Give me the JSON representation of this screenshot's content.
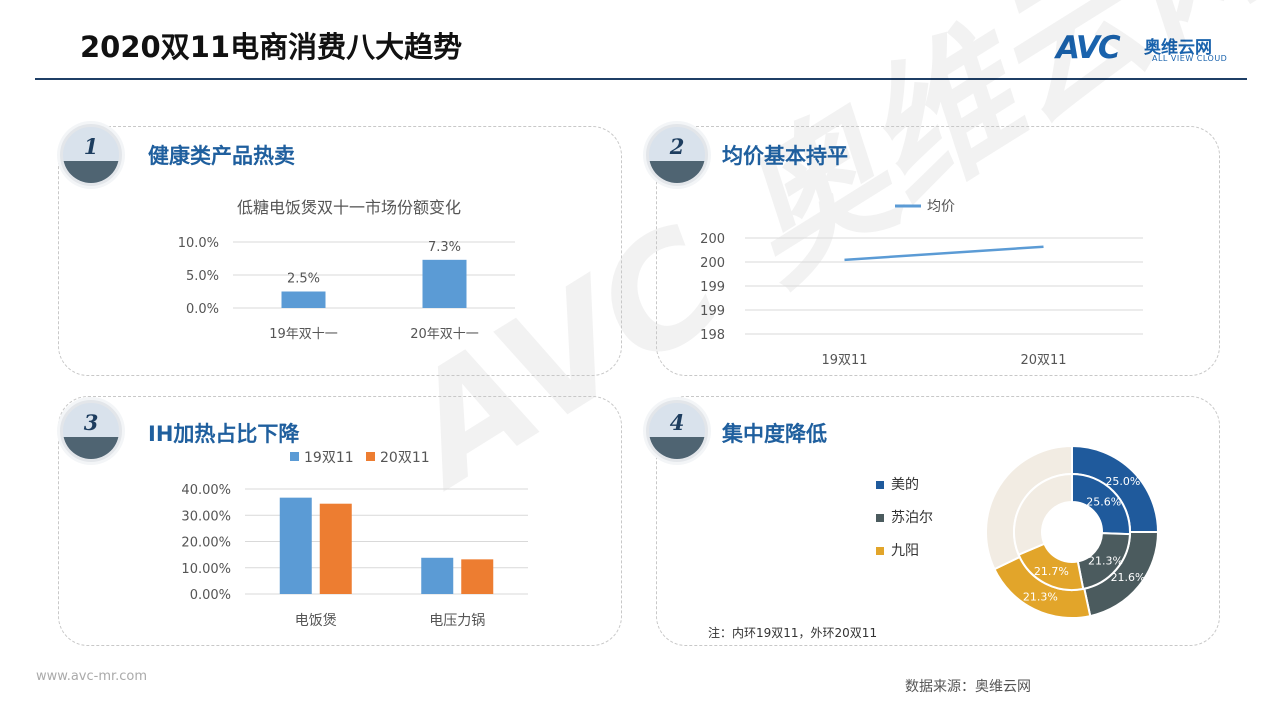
{
  "title": "2020双11电商消费八大趋势",
  "logo": {
    "mark": "AVC",
    "name_cn": "奥维云网",
    "name_en": "ALL VIEW CLOUD"
  },
  "footer_url": "www.avc-mr.com",
  "source": "数据来源：奥维云网",
  "panels": [
    {
      "num": "1",
      "title": "健康类产品热卖"
    },
    {
      "num": "2",
      "title": "均价基本持平"
    },
    {
      "num": "3",
      "title": "IH加热占比下降"
    },
    {
      "num": "4",
      "title": "集中度降低"
    }
  ],
  "note": "注：内环19双11，外环20双11",
  "colors": {
    "blue": "#5b9bd5",
    "orange": "#ed7d31",
    "midea": "#1f5a9c",
    "supor": "#4b5b5e",
    "joyoung": "#e2a52a",
    "title": "#1f5f9e"
  },
  "chart_data": [
    {
      "type": "bar",
      "title": "低糖电饭煲双十一市场份额变化",
      "categories": [
        "19年双十一",
        "20年双十一"
      ],
      "values": [
        2.5,
        7.3
      ],
      "data_labels": [
        "2.5%",
        "7.3%"
      ],
      "ylim": [
        0,
        10
      ],
      "yticks": [
        "0.0%",
        "5.0%",
        "10.0%"
      ],
      "grid": true
    },
    {
      "type": "line",
      "title": "",
      "series": [
        {
          "name": "均价",
          "values": [
            199.7,
            200.0
          ]
        }
      ],
      "categories": [
        "19双11",
        "20双11"
      ],
      "ylim": [
        198,
        200.2
      ],
      "yticks": [
        "198",
        "199",
        "199",
        "200",
        "200"
      ],
      "legend": "top",
      "grid": true
    },
    {
      "type": "bar",
      "title": "",
      "categories": [
        "电饭煲",
        "电压力锅"
      ],
      "series": [
        {
          "name": "19双11",
          "values": [
            36.7,
            13.8
          ]
        },
        {
          "name": "20双11",
          "values": [
            34.4,
            13.2
          ]
        }
      ],
      "ylim": [
        0,
        40
      ],
      "yticks": [
        "0.00%",
        "10.00%",
        "20.00%",
        "30.00%",
        "40.00%"
      ],
      "legend": "top",
      "grid": true
    },
    {
      "type": "pie",
      "title": "",
      "categories": [
        "美的",
        "苏泊尔",
        "九阳"
      ],
      "inner": {
        "name": "19双11",
        "values": [
          25.6,
          21.3,
          21.7
        ],
        "labels": [
          "25.6%",
          "21.3%",
          "21.7%"
        ]
      },
      "outer": {
        "name": "20双11",
        "values": [
          25.0,
          21.6,
          21.3
        ],
        "labels": [
          "25.0%",
          "21.6%",
          "21.3%"
        ]
      },
      "legend": "left"
    }
  ]
}
